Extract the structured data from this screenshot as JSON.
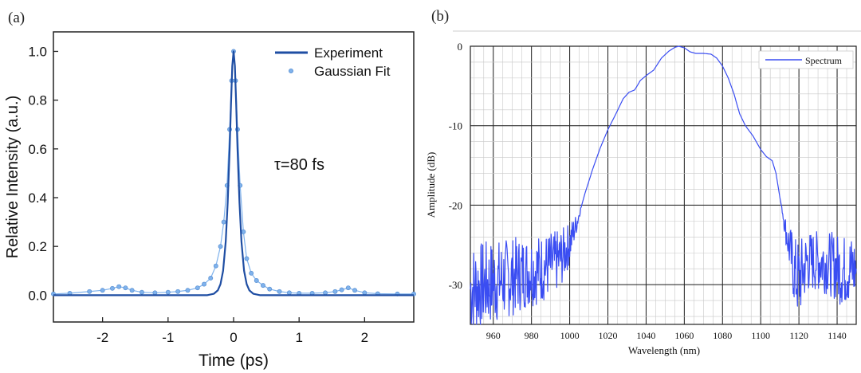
{
  "chart_data": [
    {
      "panel_label": "(a)",
      "type": "line",
      "xlabel": "Time (ps)",
      "ylabel": "Relative Intensity (a.u.)",
      "xlim": [
        -2.75,
        2.75
      ],
      "ylim": [
        -0.11,
        1.08
      ],
      "xticks": [
        -2,
        -1,
        0,
        1,
        2
      ],
      "xtick_labels": [
        "-2",
        "-1",
        "0",
        "1",
        "2"
      ],
      "yticks": [
        0.0,
        0.2,
        0.4,
        0.6,
        0.8,
        1.0
      ],
      "ytick_labels": [
        "0.0",
        "0.2",
        "0.4",
        "0.6",
        "0.8",
        "1.0"
      ],
      "grid": false,
      "legend_position": "top-right",
      "annotation": "τ=80 fs",
      "series": [
        {
          "name": "Experiment",
          "style": "line",
          "color": "#1f4ea3",
          "x": [
            -2.75,
            -0.4,
            -0.3,
            -0.24,
            -0.2,
            -0.16,
            -0.12,
            -0.09,
            -0.06,
            -0.04,
            -0.02,
            0.0,
            0.02,
            0.04,
            0.06,
            0.09,
            0.12,
            0.16,
            0.2,
            0.24,
            0.3,
            0.4,
            2.75
          ],
          "y": [
            0.0,
            0.0,
            0.006,
            0.02,
            0.045,
            0.1,
            0.22,
            0.38,
            0.6,
            0.78,
            0.94,
            1.0,
            0.94,
            0.78,
            0.6,
            0.38,
            0.22,
            0.1,
            0.045,
            0.02,
            0.006,
            0.0,
            0.0
          ]
        },
        {
          "name": "Gaussian Fit",
          "style": "markers",
          "color": "#7fb2ec",
          "x": [
            -2.75,
            -2.5,
            -2.2,
            -2.0,
            -1.85,
            -1.75,
            -1.65,
            -1.55,
            -1.4,
            -1.2,
            -1.0,
            -0.85,
            -0.7,
            -0.55,
            -0.45,
            -0.35,
            -0.27,
            -0.2,
            -0.15,
            -0.1,
            -0.06,
            -0.03,
            0.0,
            0.03,
            0.06,
            0.1,
            0.15,
            0.2,
            0.27,
            0.35,
            0.45,
            0.55,
            0.7,
            0.85,
            1.0,
            1.2,
            1.4,
            1.55,
            1.65,
            1.75,
            1.85,
            2.0,
            2.2,
            2.5,
            2.75
          ],
          "y": [
            0.005,
            0.008,
            0.015,
            0.02,
            0.028,
            0.035,
            0.03,
            0.02,
            0.012,
            0.01,
            0.012,
            0.015,
            0.02,
            0.03,
            0.045,
            0.07,
            0.12,
            0.2,
            0.3,
            0.45,
            0.68,
            0.88,
            1.0,
            0.88,
            0.68,
            0.45,
            0.26,
            0.15,
            0.09,
            0.06,
            0.04,
            0.025,
            0.015,
            0.01,
            0.008,
            0.008,
            0.01,
            0.015,
            0.022,
            0.03,
            0.02,
            0.01,
            0.006,
            0.005,
            0.005
          ]
        }
      ]
    },
    {
      "panel_label": "(b)",
      "type": "line",
      "xlabel": "Wavelength (nm)",
      "ylabel": "Amplitude (dB)",
      "xlim": [
        948,
        1150
      ],
      "ylim": [
        -35,
        0
      ],
      "xticks": [
        960,
        980,
        1000,
        1020,
        1040,
        1060,
        1080,
        1100,
        1120,
        1140
      ],
      "xtick_labels": [
        "960",
        "980",
        "1000",
        "1020",
        "1040",
        "1060",
        "1080",
        "1100",
        "1120",
        "1140"
      ],
      "yticks": [
        0,
        -10,
        -20,
        -30
      ],
      "ytick_labels": [
        "0",
        "-10",
        "-20",
        "-30"
      ],
      "grid": true,
      "legend_position": "top-right",
      "series": [
        {
          "name": "Spectrum",
          "color": "#3a4df2",
          "x": [
            948,
            955,
            962,
            970,
            978,
            985,
            992,
            996,
            1000,
            1004,
            1008,
            1012,
            1016,
            1020,
            1024,
            1028,
            1031,
            1034,
            1037,
            1040,
            1044,
            1048,
            1052,
            1055,
            1057,
            1060,
            1063,
            1066,
            1070,
            1074,
            1077,
            1080,
            1083,
            1086,
            1089,
            1092,
            1096,
            1100,
            1103,
            1106,
            1108,
            1110,
            1113,
            1116,
            1118,
            1120,
            1124,
            1130,
            1136,
            1142,
            1150
          ],
          "y": [
            -30.5,
            -30.0,
            -29.6,
            -29.0,
            -28.3,
            -28.0,
            -27.3,
            -26.5,
            -24.8,
            -22.0,
            -18.5,
            -15.5,
            -12.8,
            -10.5,
            -8.6,
            -6.6,
            -5.8,
            -5.5,
            -4.3,
            -3.7,
            -3.0,
            -1.5,
            -0.6,
            -0.15,
            0.0,
            -0.2,
            -0.7,
            -0.9,
            -0.9,
            -1.0,
            -1.5,
            -2.5,
            -4.0,
            -6.0,
            -8.5,
            -10.0,
            -11.3,
            -13.0,
            -13.9,
            -14.4,
            -16.0,
            -19.0,
            -23.0,
            -26.5,
            -28.8,
            -29.5,
            -27.2,
            -27.0,
            -27.3,
            -28.2,
            -28.0
          ]
        }
      ]
    }
  ]
}
